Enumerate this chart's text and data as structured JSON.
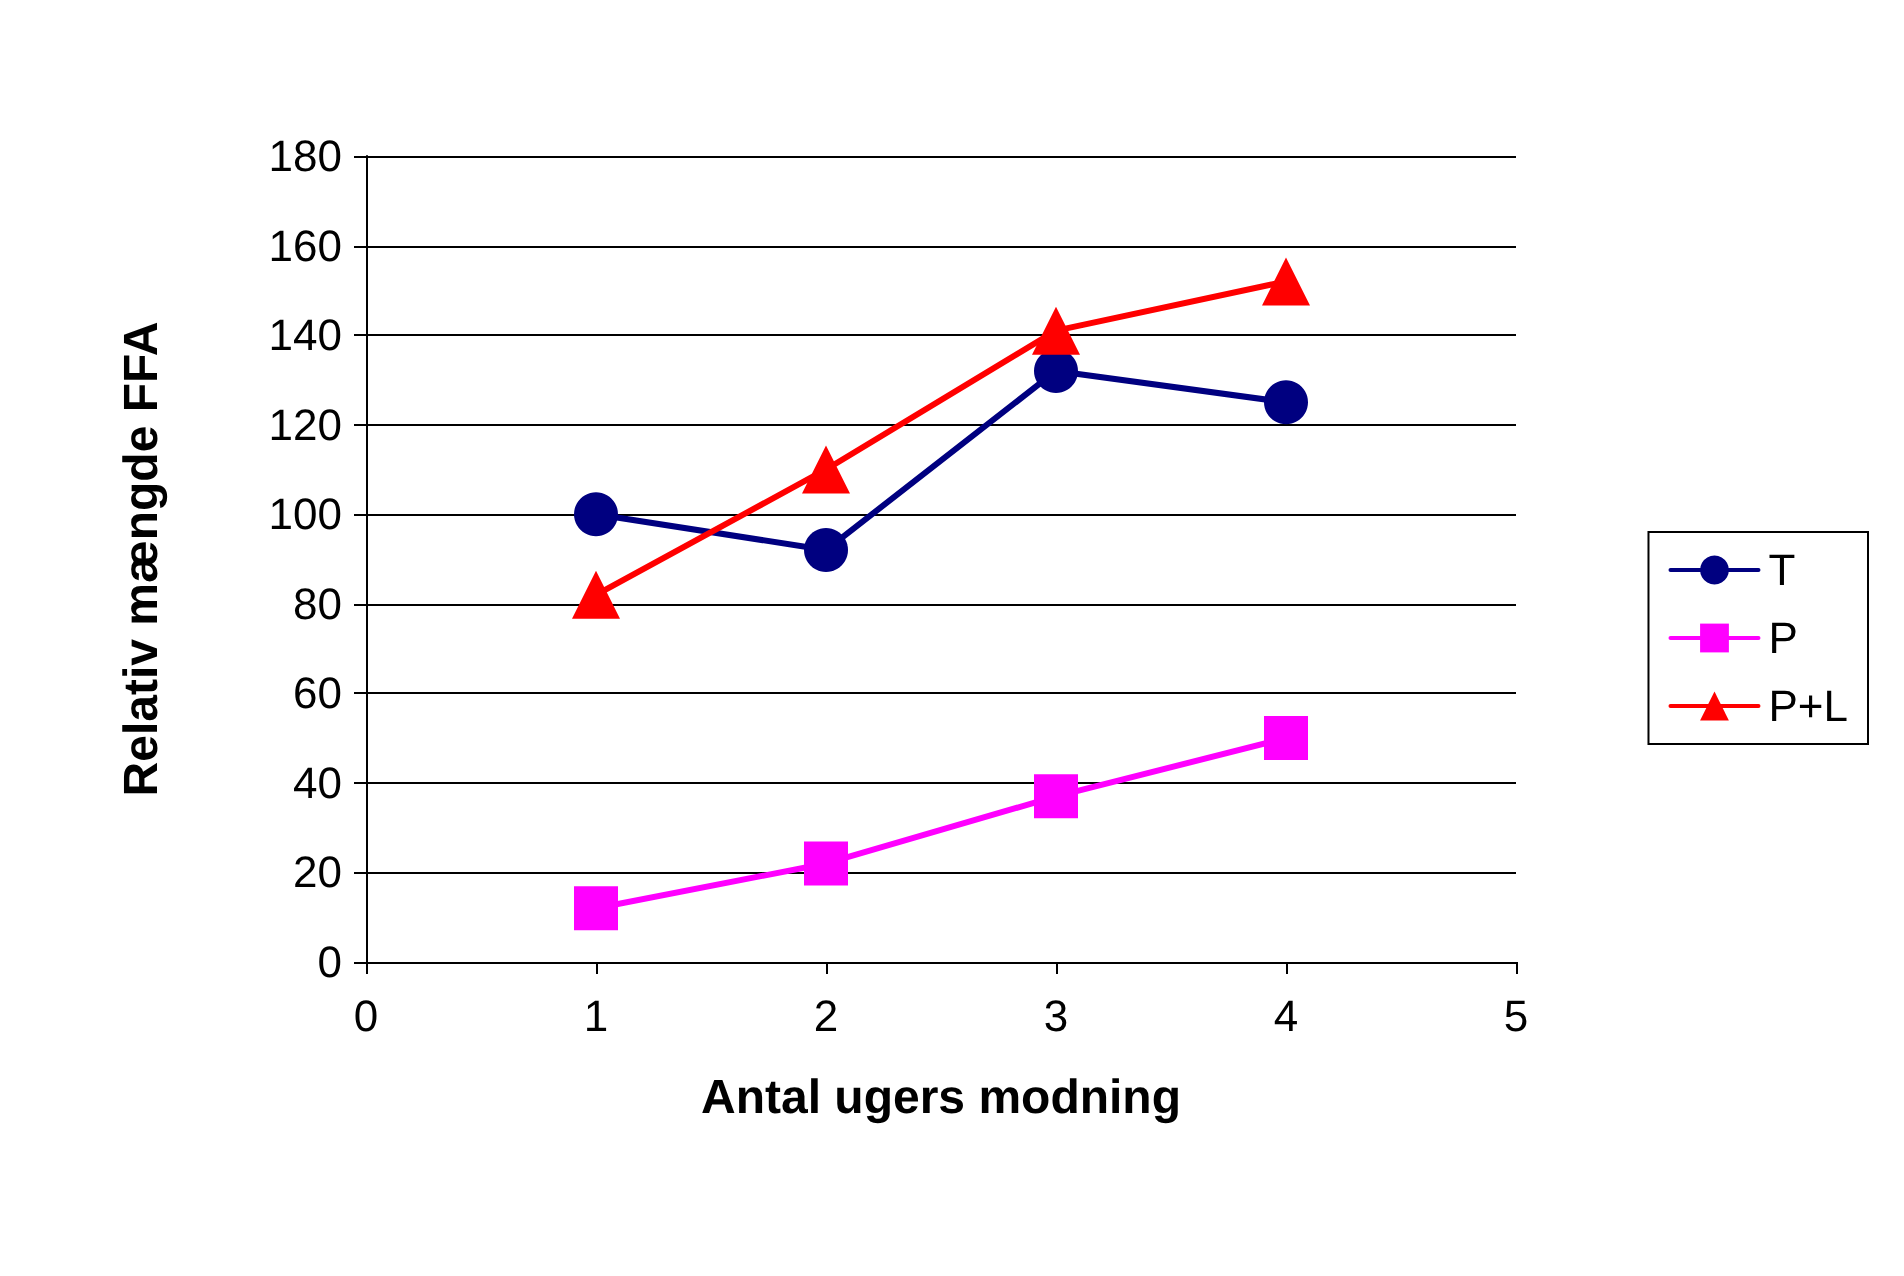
{
  "chart_data": {
    "type": "line",
    "xlabel": "Antal ugers modning",
    "ylabel": "Relativ mængde FFA",
    "x": [
      1,
      2,
      3,
      4
    ],
    "series": [
      {
        "name": "T",
        "color": "#000080",
        "marker": "circle",
        "values": [
          100,
          92,
          132,
          125
        ]
      },
      {
        "name": "P",
        "color": "#ff00ff",
        "marker": "square",
        "values": [
          12,
          22,
          37,
          50
        ]
      },
      {
        "name": "P+L",
        "color": "#ff0000",
        "marker": "triangle",
        "values": [
          82,
          110,
          141,
          152
        ]
      }
    ],
    "xlim": [
      0,
      5
    ],
    "xticks": [
      0,
      1,
      2,
      3,
      4,
      5
    ],
    "ylim": [
      0,
      180
    ],
    "yticks": [
      0,
      20,
      40,
      60,
      80,
      100,
      120,
      140,
      160,
      180
    ],
    "grid": "y",
    "legend": "right",
    "line_style": "solid"
  }
}
